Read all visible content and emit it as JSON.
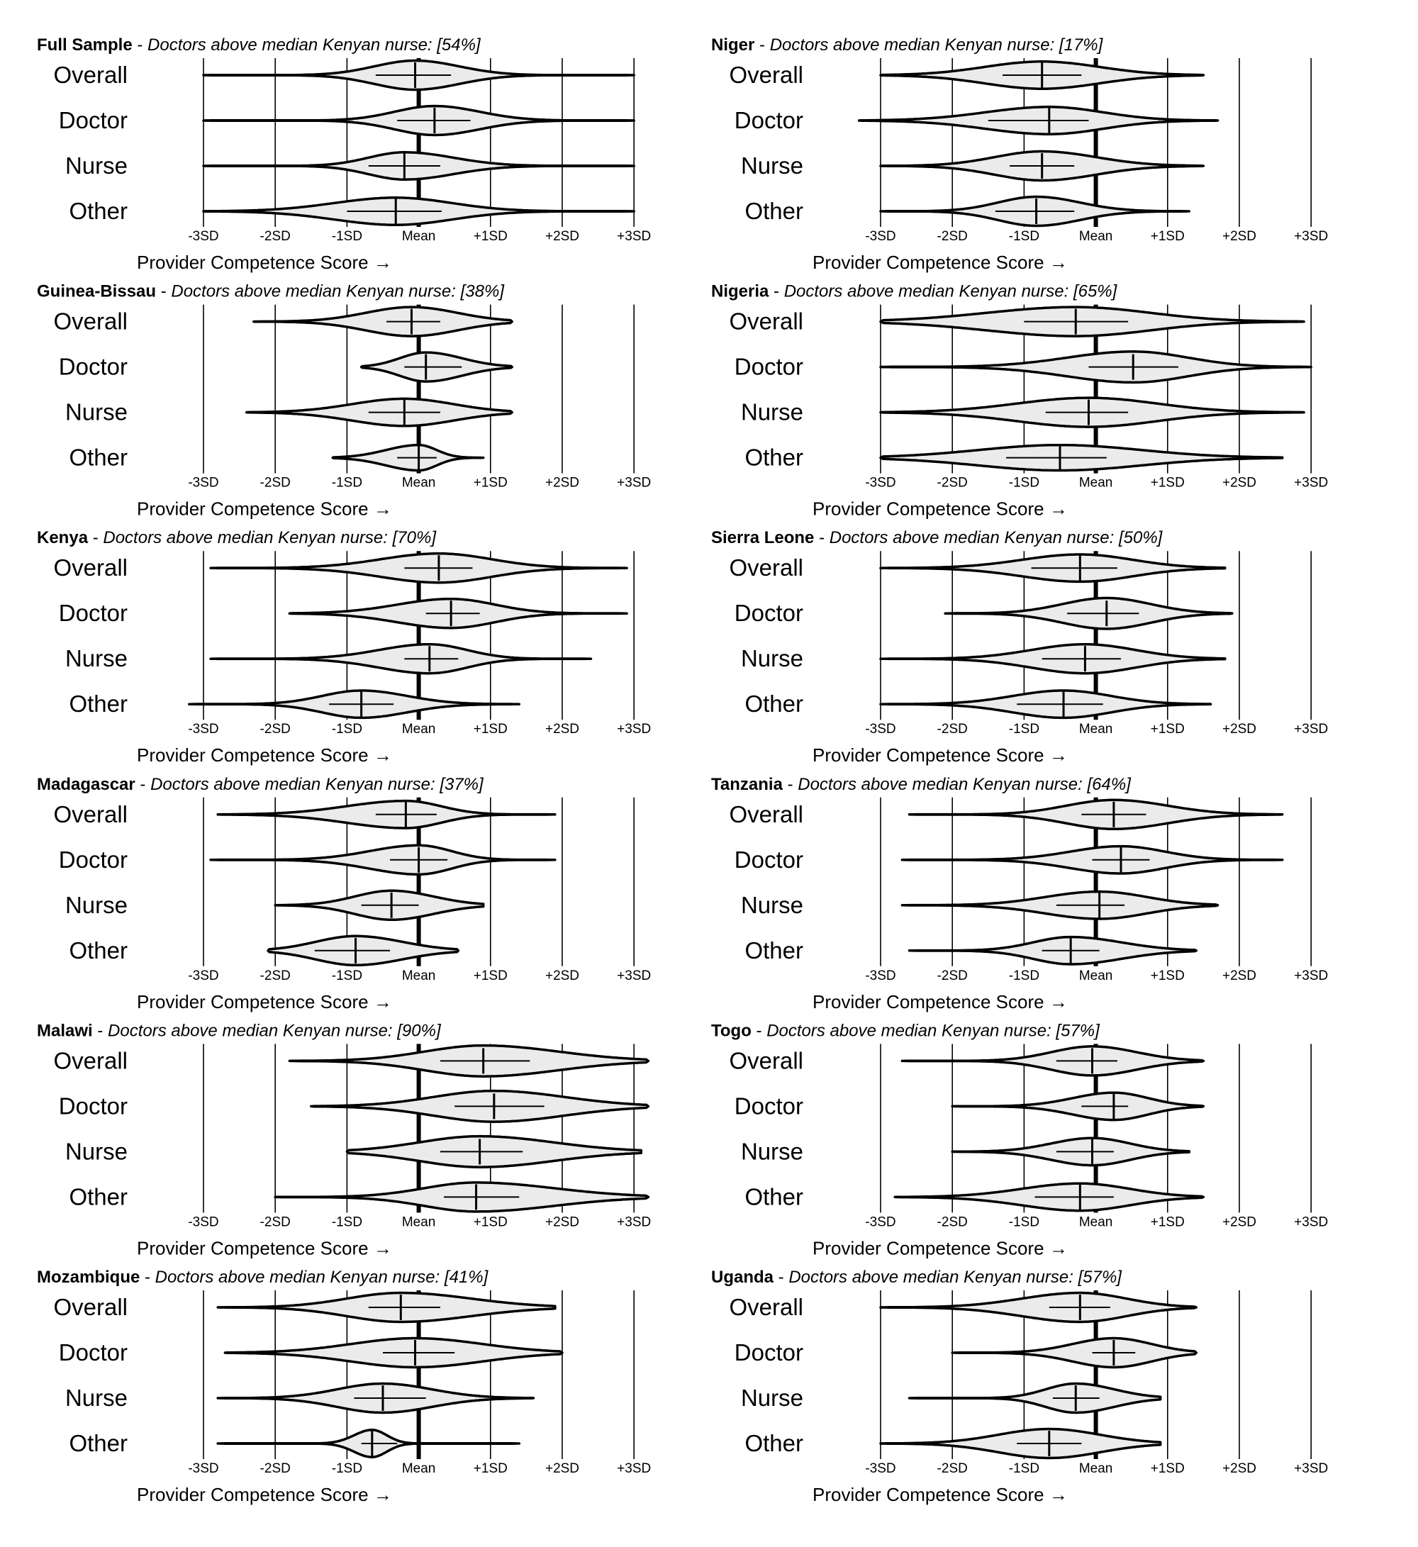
{
  "figure": {
    "title_prefix": "Doctors above median Kenyan nurse:",
    "axis_label": "Provider Competence Score →",
    "row_labels": [
      "Overall",
      "Doctor",
      "Nurse",
      "Other"
    ],
    "tick_labels": [
      "-3SD",
      "-2SD",
      "-1SD",
      "Mean",
      "+1SD",
      "+2SD",
      "+3SD"
    ],
    "tick_values": [
      -3,
      -2,
      -1,
      0,
      1,
      2,
      3
    ]
  },
  "chart_data": [
    {
      "type": "violin",
      "country": "Full Sample",
      "pct_label": "[54%]",
      "xlim": [
        -3,
        3
      ],
      "series": [
        {
          "name": "Overall",
          "tail": [
            -3,
            3
          ],
          "body": [
            -1.3,
            1.3
          ],
          "thick": 0.32,
          "p25": -0.6,
          "median": -0.05,
          "p75": 0.45
        },
        {
          "name": "Doctor",
          "tail": [
            -3,
            3
          ],
          "body": [
            -1.0,
            1.6
          ],
          "thick": 0.32,
          "p25": -0.3,
          "median": 0.22,
          "p75": 0.72
        },
        {
          "name": "Nurse",
          "tail": [
            -3,
            3
          ],
          "body": [
            -1.3,
            1.3
          ],
          "thick": 0.3,
          "p25": -0.7,
          "median": -0.2,
          "p75": 0.3
        },
        {
          "name": "Other",
          "tail": [
            -3,
            3
          ],
          "body": [
            -2.2,
            1.4
          ],
          "thick": 0.3,
          "p25": -1.0,
          "median": -0.32,
          "p75": 0.32
        }
      ]
    },
    {
      "type": "violin",
      "country": "Niger",
      "pct_label": "[17%]",
      "xlim": [
        -3,
        3
      ],
      "series": [
        {
          "name": "Overall",
          "tail": [
            -3,
            1.5
          ],
          "body": [
            -2.5,
            1.0
          ],
          "thick": 0.3,
          "p25": -1.3,
          "median": -0.75,
          "p75": -0.2
        },
        {
          "name": "Doctor",
          "tail": [
            -3.3,
            1.7
          ],
          "body": [
            -2.6,
            1.0
          ],
          "thick": 0.3,
          "p25": -1.5,
          "median": -0.65,
          "p75": -0.1
        },
        {
          "name": "Nurse",
          "tail": [
            -3,
            1.5
          ],
          "body": [
            -2.2,
            0.9
          ],
          "thick": 0.32,
          "p25": -1.2,
          "median": -0.75,
          "p75": -0.3
        },
        {
          "name": "Other",
          "tail": [
            -3,
            1.3
          ],
          "body": [
            -2.0,
            0.5
          ],
          "thick": 0.32,
          "p25": -1.4,
          "median": -0.83,
          "p75": -0.3
        }
      ]
    },
    {
      "type": "violin",
      "country": "Guinea-Bissau",
      "pct_label": "[38%]",
      "xlim": [
        -3,
        3
      ],
      "series": [
        {
          "name": "Overall",
          "tail": [
            -2.3,
            1.3
          ],
          "body": [
            -1.5,
            1.3
          ],
          "thick": 0.32,
          "p25": -0.45,
          "median": -0.1,
          "p75": 0.3
        },
        {
          "name": "Doctor",
          "tail": [
            -0.8,
            1.3
          ],
          "body": [
            -0.7,
            1.2
          ],
          "thick": 0.32,
          "p25": -0.2,
          "median": 0.1,
          "p75": 0.6
        },
        {
          "name": "Nurse",
          "tail": [
            -2.4,
            1.3
          ],
          "body": [
            -1.8,
            1.3
          ],
          "thick": 0.3,
          "p25": -0.7,
          "median": -0.2,
          "p75": 0.3
        },
        {
          "name": "Other",
          "tail": [
            -1.2,
            0.9
          ],
          "body": [
            -1.0,
            0.55
          ],
          "thick": 0.28,
          "p25": -0.3,
          "median": 0.0,
          "p75": 0.25
        }
      ]
    },
    {
      "type": "violin",
      "country": "Nigeria",
      "pct_label": "[65%]",
      "xlim": [
        -3,
        3
      ],
      "series": [
        {
          "name": "Overall",
          "tail": [
            -3,
            2.9
          ],
          "body": [
            -3,
            2.0
          ],
          "thick": 0.32,
          "p25": -1.0,
          "median": -0.28,
          "p75": 0.45
        },
        {
          "name": "Doctor",
          "tail": [
            -3,
            3
          ],
          "body": [
            -1.5,
            2.2
          ],
          "thick": 0.34,
          "p25": -0.1,
          "median": 0.52,
          "p75": 1.15
        },
        {
          "name": "Nurse",
          "tail": [
            -3,
            2.9
          ],
          "body": [
            -2.3,
            2.0
          ],
          "thick": 0.32,
          "p25": -0.7,
          "median": -0.1,
          "p75": 0.45
        },
        {
          "name": "Other",
          "tail": [
            -3,
            2.6
          ],
          "body": [
            -3,
            2.0
          ],
          "thick": 0.28,
          "p25": -1.25,
          "median": -0.5,
          "p75": 0.15
        }
      ]
    },
    {
      "type": "violin",
      "country": "Kenya",
      "pct_label": "[70%]",
      "xlim": [
        -3,
        3
      ],
      "series": [
        {
          "name": "Overall",
          "tail": [
            -2.9,
            2.9
          ],
          "body": [
            -1.5,
            1.9
          ],
          "thick": 0.32,
          "p25": -0.2,
          "median": 0.28,
          "p75": 0.75
        },
        {
          "name": "Doctor",
          "tail": [
            -1.8,
            2.9
          ],
          "body": [
            -1.2,
            1.8
          ],
          "thick": 0.32,
          "p25": 0.1,
          "median": 0.45,
          "p75": 0.85
        },
        {
          "name": "Nurse",
          "tail": [
            -2.9,
            2.4
          ],
          "body": [
            -1.4,
            1.3
          ],
          "thick": 0.32,
          "p25": -0.2,
          "median": 0.15,
          "p75": 0.55
        },
        {
          "name": "Other",
          "tail": [
            -3.2,
            1.4
          ],
          "body": [
            -2.0,
            0.6
          ],
          "thick": 0.3,
          "p25": -1.25,
          "median": -0.8,
          "p75": -0.35
        }
      ]
    },
    {
      "type": "violin",
      "country": "Sierra Leone",
      "pct_label": "[50%]",
      "xlim": [
        -3,
        3
      ],
      "series": [
        {
          "name": "Overall",
          "tail": [
            -3,
            1.8
          ],
          "body": [
            -2.0,
            1.4
          ],
          "thick": 0.3,
          "p25": -0.9,
          "median": -0.22,
          "p75": 0.3
        },
        {
          "name": "Doctor",
          "tail": [
            -2.1,
            1.9
          ],
          "body": [
            -1.2,
            1.5
          ],
          "thick": 0.34,
          "p25": -0.4,
          "median": 0.15,
          "p75": 0.6
        },
        {
          "name": "Nurse",
          "tail": [
            -3,
            1.8
          ],
          "body": [
            -1.8,
            1.4
          ],
          "thick": 0.32,
          "p25": -0.75,
          "median": -0.15,
          "p75": 0.35
        },
        {
          "name": "Other",
          "tail": [
            -3,
            1.6
          ],
          "body": [
            -2.0,
            1.0
          ],
          "thick": 0.3,
          "p25": -1.1,
          "median": -0.45,
          "p75": 0.1
        }
      ]
    },
    {
      "type": "violin",
      "country": "Madagascar",
      "pct_label": "[37%]",
      "xlim": [
        -3,
        3
      ],
      "series": [
        {
          "name": "Overall",
          "tail": [
            -2.8,
            1.9
          ],
          "body": [
            -2.0,
            0.9
          ],
          "thick": 0.3,
          "p25": -0.6,
          "median": -0.18,
          "p75": 0.25
        },
        {
          "name": "Doctor",
          "tail": [
            -2.9,
            1.9
          ],
          "body": [
            -1.5,
            1.0
          ],
          "thick": 0.32,
          "p25": -0.4,
          "median": 0.0,
          "p75": 0.4
        },
        {
          "name": "Nurse",
          "tail": [
            -2.0,
            0.9
          ],
          "body": [
            -1.5,
            0.9
          ],
          "thick": 0.32,
          "p25": -0.8,
          "median": -0.38,
          "p75": 0.0
        },
        {
          "name": "Other",
          "tail": [
            -2.1,
            0.55
          ],
          "body": [
            -2.1,
            0.55
          ],
          "thick": 0.32,
          "p25": -1.45,
          "median": -0.88,
          "p75": -0.4
        }
      ]
    },
    {
      "type": "violin",
      "country": "Tanzania",
      "pct_label": "[64%]",
      "xlim": [
        -3,
        3
      ],
      "series": [
        {
          "name": "Overall",
          "tail": [
            -2.6,
            2.6
          ],
          "body": [
            -1.2,
            1.9
          ],
          "thick": 0.32,
          "p25": -0.2,
          "median": 0.25,
          "p75": 0.7
        },
        {
          "name": "Doctor",
          "tail": [
            -2.7,
            2.6
          ],
          "body": [
            -1.2,
            1.7
          ],
          "thick": 0.3,
          "p25": -0.05,
          "median": 0.35,
          "p75": 0.75
        },
        {
          "name": "Nurse",
          "tail": [
            -2.7,
            1.7
          ],
          "body": [
            -1.6,
            1.5
          ],
          "thick": 0.3,
          "p25": -0.55,
          "median": 0.05,
          "p75": 0.4
        },
        {
          "name": "Other",
          "tail": [
            -2.6,
            1.4
          ],
          "body": [
            -1.5,
            1.2
          ],
          "thick": 0.3,
          "p25": -0.75,
          "median": -0.35,
          "p75": 0.05
        }
      ]
    },
    {
      "type": "violin",
      "country": "Malawi",
      "pct_label": "[90%]",
      "xlim": [
        -3,
        3
      ],
      "series": [
        {
          "name": "Overall",
          "tail": [
            -1.8,
            3.2
          ],
          "body": [
            -0.9,
            3.2
          ],
          "thick": 0.34,
          "p25": 0.3,
          "median": 0.9,
          "p75": 1.55
        },
        {
          "name": "Doctor",
          "tail": [
            -1.5,
            3.2
          ],
          "body": [
            -0.8,
            3.2
          ],
          "thick": 0.34,
          "p25": 0.5,
          "median": 1.05,
          "p75": 1.75
        },
        {
          "name": "Nurse",
          "tail": [
            -1.0,
            3.1
          ],
          "body": [
            -1.0,
            3.1
          ],
          "thick": 0.34,
          "p25": 0.3,
          "median": 0.85,
          "p75": 1.45
        },
        {
          "name": "Other",
          "tail": [
            -2.0,
            3.2
          ],
          "body": [
            -0.8,
            3.2
          ],
          "thick": 0.32,
          "p25": 0.35,
          "median": 0.8,
          "p75": 1.4
        }
      ]
    },
    {
      "type": "violin",
      "country": "Togo",
      "pct_label": "[57%]",
      "xlim": [
        -3,
        3
      ],
      "series": [
        {
          "name": "Overall",
          "tail": [
            -2.7,
            1.5
          ],
          "body": [
            -1.3,
            1.3
          ],
          "thick": 0.32,
          "p25": -0.55,
          "median": -0.05,
          "p75": 0.3
        },
        {
          "name": "Doctor",
          "tail": [
            -2.0,
            1.5
          ],
          "body": [
            -1.0,
            1.3
          ],
          "thick": 0.3,
          "p25": -0.2,
          "median": 0.25,
          "p75": 0.45
        },
        {
          "name": "Nurse",
          "tail": [
            -2.0,
            1.3
          ],
          "body": [
            -1.3,
            1.1
          ],
          "thick": 0.3,
          "p25": -0.55,
          "median": -0.05,
          "p75": 0.25
        },
        {
          "name": "Other",
          "tail": [
            -2.8,
            1.5
          ],
          "body": [
            -2.0,
            1.3
          ],
          "thick": 0.3,
          "p25": -0.85,
          "median": -0.22,
          "p75": 0.25
        }
      ]
    },
    {
      "type": "violin",
      "country": "Mozambique",
      "pct_label": "[41%]",
      "xlim": [
        -3,
        3
      ],
      "series": [
        {
          "name": "Overall",
          "tail": [
            -2.8,
            1.9
          ],
          "body": [
            -1.9,
            1.9
          ],
          "thick": 0.32,
          "p25": -0.7,
          "median": -0.25,
          "p75": 0.3
        },
        {
          "name": "Doctor",
          "tail": [
            -2.7,
            2.0
          ],
          "body": [
            -2.0,
            2.0
          ],
          "thick": 0.32,
          "p25": -0.5,
          "median": -0.05,
          "p75": 0.5
        },
        {
          "name": "Nurse",
          "tail": [
            -2.8,
            1.6
          ],
          "body": [
            -1.9,
            1.0
          ],
          "thick": 0.32,
          "p25": -0.9,
          "median": -0.5,
          "p75": 0.1
        },
        {
          "name": "Other",
          "tail": [
            -2.8,
            1.4
          ],
          "body": [
            -1.2,
            -0.2
          ],
          "thick": 0.3,
          "p25": -0.8,
          "median": -0.65,
          "p75": -0.3
        }
      ]
    },
    {
      "type": "violin",
      "country": "Uganda",
      "pct_label": "[57%]",
      "xlim": [
        -3,
        3
      ],
      "series": [
        {
          "name": "Overall",
          "tail": [
            -3,
            1.4
          ],
          "body": [
            -2.0,
            1.2
          ],
          "thick": 0.32,
          "p25": -0.65,
          "median": -0.22,
          "p75": 0.2
        },
        {
          "name": "Doctor",
          "tail": [
            -2.0,
            1.4
          ],
          "body": [
            -1.0,
            1.4
          ],
          "thick": 0.32,
          "p25": -0.05,
          "median": 0.25,
          "p75": 0.55
        },
        {
          "name": "Nurse",
          "tail": [
            -2.6,
            0.9
          ],
          "body": [
            -1.2,
            0.9
          ],
          "thick": 0.32,
          "p25": -0.6,
          "median": -0.28,
          "p75": 0.05
        },
        {
          "name": "Other",
          "tail": [
            -3,
            0.9
          ],
          "body": [
            -2.2,
            0.9
          ],
          "thick": 0.32,
          "p25": -1.1,
          "median": -0.65,
          "p75": -0.2
        }
      ]
    }
  ]
}
